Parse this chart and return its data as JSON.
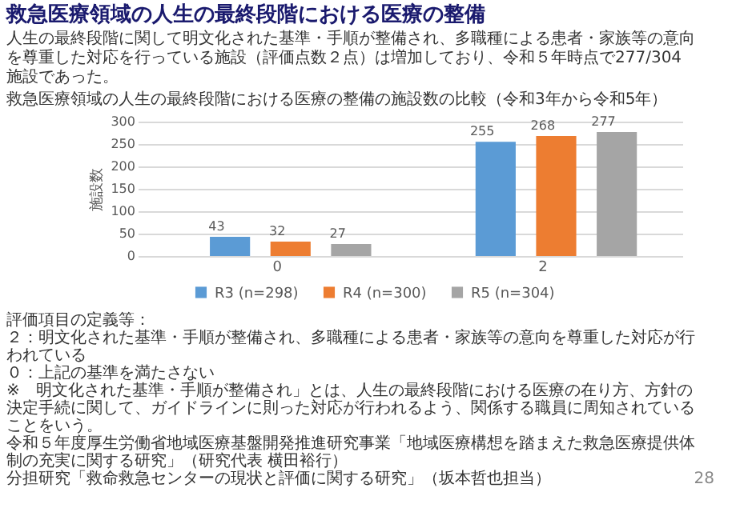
{
  "chart_data": {
    "type": "bar",
    "title": "救急医療領域の人生の最終段階における医療の整備",
    "subtitle": "人生の最終段階に関して明文化された基準・手順が整備され、多職種による患者・家族等の意向を尊重した対応を行っている施設（評価点数２点）は増加しており、令和５年時点で277/304施設であった。",
    "categories": [
      "0",
      "2"
    ],
    "series": [
      {
        "name": "R3 (n=298)",
        "color": "#5b9bd5",
        "values": [
          43,
          255
        ]
      },
      {
        "name": "R4 (n=300)",
        "color": "#ed7d31",
        "values": [
          32,
          268
        ]
      },
      {
        "name": "R5 (n=304)",
        "color": "#a5a5a5",
        "values": [
          27,
          277
        ]
      }
    ],
    "ylabel": "施設数",
    "ylim": [
      0,
      300
    ],
    "yticks": [
      0,
      50,
      100,
      150,
      200,
      250,
      300
    ],
    "grid": "y",
    "legend": "bottom",
    "data_labels": true,
    "annotations": [
      "救急医療領域の人生の最終段階における医療の整備の施設数の比較（令和3年から令和5年）",
      "評価項目の定義等：",
      "２：明文化された基準・手順が整備され、多職種による患者・家族等の意向を尊重した対応が行われている",
      "０：上記の基準を満たさない",
      "※　明文化された基準・手順が整備され」とは、人生の最終段階における医療の在り方、方針の決定手続に関して、ガイドラインに則った対応が行われるよう、関係する職員に周知されていることをいう。",
      "令和５年度厚生労働省地域医療基盤開発推進研究事業「地域医療構想を踏まえた救急医療提供体制の充実に関する研究」（研究代表 横田裕行）",
      "分担研究「救命救急センターの現状と評価に関する研究」（坂本哲也担当）",
      "28"
    ]
  }
}
